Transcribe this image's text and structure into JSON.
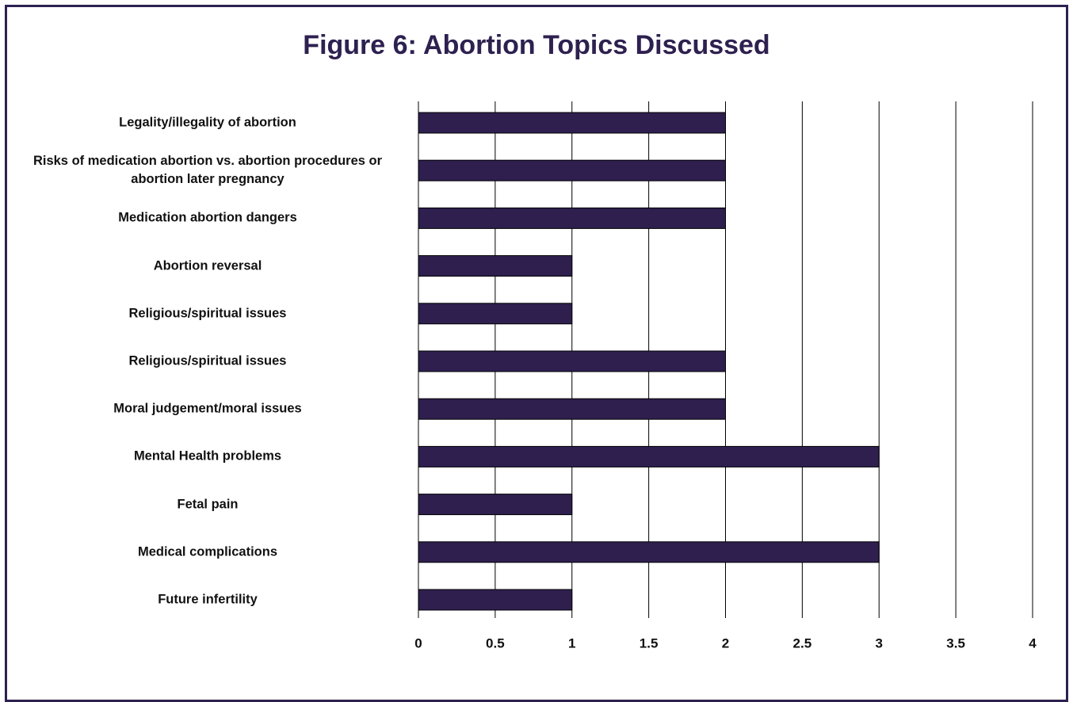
{
  "chart_data": {
    "type": "bar",
    "orientation": "horizontal",
    "title": "Figure 6: Abortion Topics Discussed",
    "categories": [
      "Legality/illegality of abortion",
      "Risks of medication abortion vs. abortion procedures or abortion later pregnancy",
      "Medication abortion dangers",
      "Abortion reversal",
      "Religious/spiritual issues",
      "Religious/spiritual issues",
      "Moral judgement/moral issues",
      "Mental Health problems",
      "Fetal pain",
      "Medical complications",
      "Future infertility"
    ],
    "values": [
      2,
      2,
      2,
      1,
      1,
      2,
      2,
      3,
      1,
      3,
      1
    ],
    "color": "#2e1f4f",
    "xlim": [
      0,
      4
    ],
    "xticks": [
      0,
      0.5,
      1,
      1.5,
      2,
      2.5,
      3,
      3.5,
      4
    ],
    "grid": true
  }
}
